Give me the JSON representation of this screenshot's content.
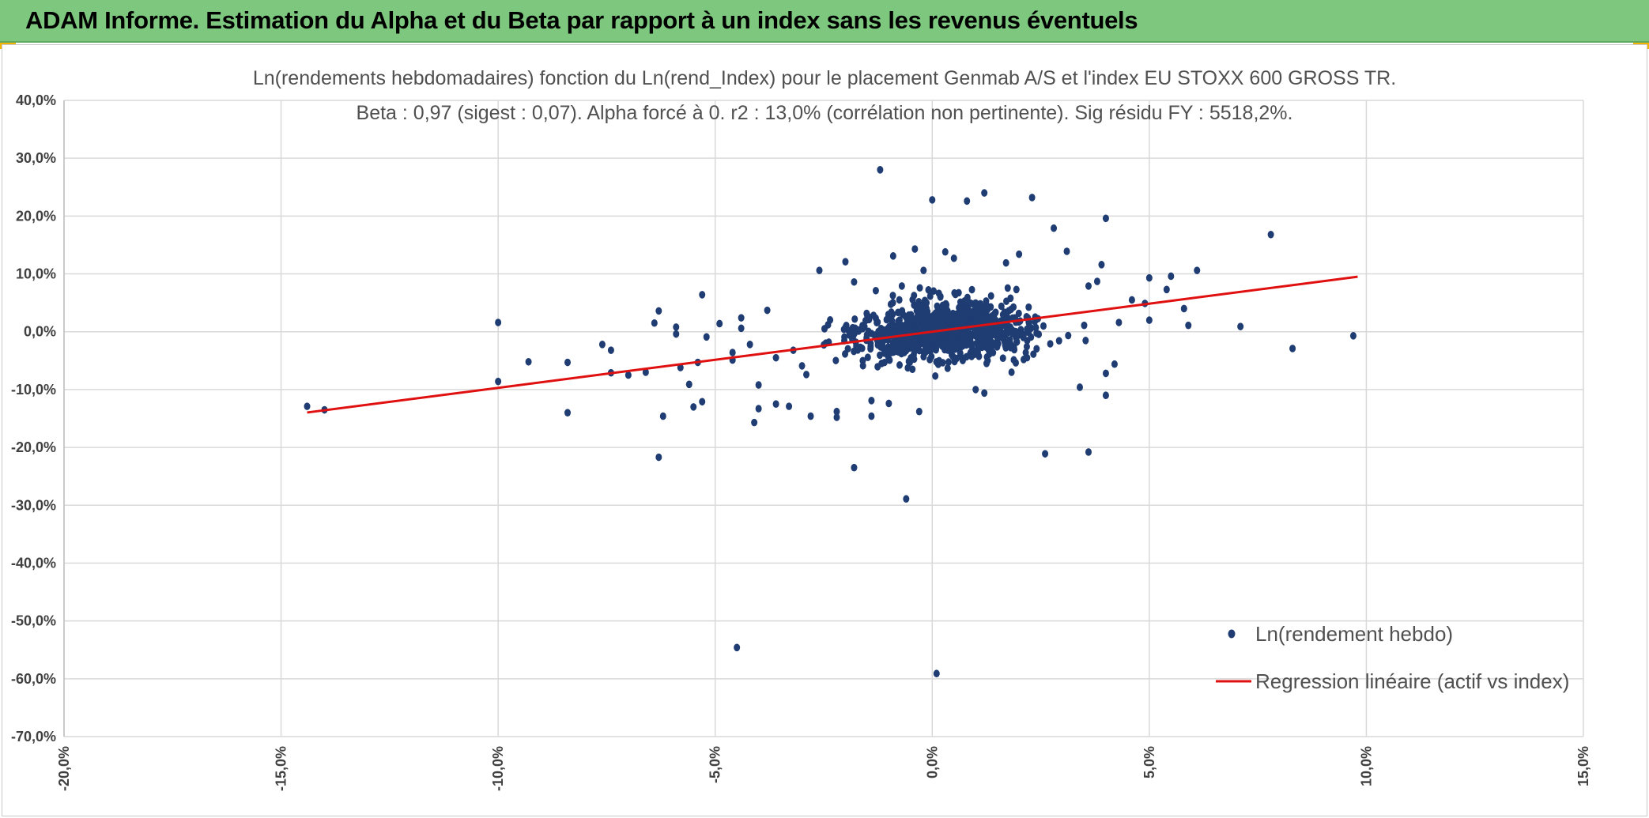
{
  "header": {
    "title": "ADAM Informe. Estimation du Alpha et du Beta par rapport à un index sans les revenus éventuels"
  },
  "colors": {
    "banner": "#7dc87e",
    "points": "#1f3d73",
    "regression": "#e01010",
    "grid": "#d9d9d9",
    "corner_accent": "#f2b400"
  },
  "chart_data": {
    "type": "scatter",
    "title": "Ln(rendements hebdomadaires) fonction du Ln(rend_Index) pour le placement Genmab A/S et l'index EU STOXX 600 GROSS TR.",
    "subtitle": "Beta : 0,97 (sigest : 0,07). Alpha forcé à 0. r2 : 13,0% (corrélation non pertinente). Sig résidu FY : 5518,2%.",
    "xlabel": "",
    "ylabel": "",
    "xlim": [
      -20,
      15
    ],
    "ylim": [
      -70,
      40
    ],
    "x_ticks": [
      -20,
      -15,
      -10,
      -5,
      0,
      5,
      10,
      15
    ],
    "y_ticks": [
      40,
      30,
      20,
      10,
      0,
      -10,
      -20,
      -30,
      -40,
      -50,
      -60,
      -70
    ],
    "x_tick_labels": [
      "-20,0%",
      "-15,0%",
      "-10,0%",
      "-5,0%",
      "0,0%",
      "5,0%",
      "10,0%",
      "15,0%"
    ],
    "y_tick_labels": [
      "40,0%",
      "30,0%",
      "20,0%",
      "10,0%",
      "0,0%",
      "-10,0%",
      "-20,0%",
      "-30,0%",
      "-40,0%",
      "-50,0%",
      "-60,0%",
      "-70,0%"
    ],
    "grid": true,
    "legend_position": "bottom-right",
    "legend": [
      "Ln(rendement hebdo)",
      "Regression linéaire (actif vs index)"
    ],
    "regression": {
      "name": "Regression linéaire (actif vs index)",
      "beta": 0.97,
      "alpha": 0,
      "x_range": [
        -14.4,
        9.8
      ]
    },
    "series": [
      {
        "name": "Ln(rendement hebdo)",
        "points": [
          [
            -14.4,
            -12.9
          ],
          [
            -14.0,
            -13.5
          ],
          [
            -10.0,
            1.6
          ],
          [
            -10.0,
            -8.6
          ],
          [
            -9.3,
            -5.2
          ],
          [
            -8.4,
            -5.3
          ],
          [
            -8.4,
            -14.0
          ],
          [
            -7.6,
            -2.2
          ],
          [
            -7.4,
            -3.2
          ],
          [
            -7.4,
            -7.1
          ],
          [
            -7.0,
            -7.5
          ],
          [
            -6.6,
            -7.0
          ],
          [
            -6.4,
            1.5
          ],
          [
            -6.3,
            3.6
          ],
          [
            -6.3,
            -21.7
          ],
          [
            -6.2,
            -14.6
          ],
          [
            -5.9,
            0.8
          ],
          [
            -5.9,
            -0.4
          ],
          [
            -5.8,
            -6.2
          ],
          [
            -5.6,
            -9.1
          ],
          [
            -5.5,
            -13.0
          ],
          [
            -5.4,
            -5.3
          ],
          [
            -5.3,
            6.4
          ],
          [
            -5.3,
            -12.1
          ],
          [
            -5.2,
            -0.9
          ],
          [
            -4.9,
            1.4
          ],
          [
            -4.6,
            -3.6
          ],
          [
            -4.6,
            -4.9
          ],
          [
            -4.4,
            2.4
          ],
          [
            -4.4,
            0.6
          ],
          [
            -4.2,
            -2.2
          ],
          [
            -4.0,
            -9.2
          ],
          [
            -3.8,
            3.7
          ],
          [
            -4.5,
            -54.6
          ],
          [
            -4.1,
            -15.7
          ],
          [
            -4.0,
            -13.3
          ],
          [
            -3.6,
            -12.5
          ],
          [
            -3.3,
            -12.9
          ],
          [
            -3.6,
            -4.5
          ],
          [
            -3.2,
            -3.2
          ],
          [
            -3.0,
            -5.9
          ],
          [
            -2.9,
            -7.4
          ],
          [
            -2.8,
            -14.6
          ],
          [
            -2.6,
            10.6
          ],
          [
            -2.4,
            1.2
          ],
          [
            -2.2,
            -13.8
          ],
          [
            -2.2,
            -14.8
          ],
          [
            -2.0,
            12.1
          ],
          [
            -1.8,
            -23.5
          ],
          [
            -1.8,
            8.6
          ],
          [
            -1.6,
            -5.0
          ],
          [
            -1.5,
            2.9
          ],
          [
            -1.4,
            -11.9
          ],
          [
            -1.4,
            -14.6
          ],
          [
            -1.2,
            28.0
          ],
          [
            -1.3,
            7.1
          ],
          [
            -1.0,
            -12.4
          ],
          [
            -0.9,
            13.1
          ],
          [
            -0.7,
            7.9
          ],
          [
            -0.6,
            -28.9
          ],
          [
            -0.4,
            14.3
          ],
          [
            -0.3,
            -13.8
          ],
          [
            -0.2,
            10.6
          ],
          [
            0.0,
            22.8
          ],
          [
            0.1,
            -59.1
          ],
          [
            0.3,
            13.8
          ],
          [
            0.5,
            12.7
          ],
          [
            0.8,
            22.6
          ],
          [
            1.0,
            -10.0
          ],
          [
            1.2,
            24.0
          ],
          [
            1.2,
            -10.6
          ],
          [
            1.7,
            11.9
          ],
          [
            2.0,
            13.4
          ],
          [
            2.3,
            23.2
          ],
          [
            2.6,
            -21.1
          ],
          [
            2.8,
            17.9
          ],
          [
            3.1,
            13.9
          ],
          [
            3.4,
            -9.6
          ],
          [
            3.5,
            1.1
          ],
          [
            3.6,
            7.9
          ],
          [
            3.6,
            -20.8
          ],
          [
            3.8,
            8.7
          ],
          [
            3.9,
            11.6
          ],
          [
            4.0,
            19.6
          ],
          [
            4.0,
            -11.0
          ],
          [
            4.0,
            -7.2
          ],
          [
            4.2,
            -5.6
          ],
          [
            4.3,
            1.6
          ],
          [
            4.6,
            5.5
          ],
          [
            4.9,
            4.9
          ],
          [
            5.0,
            9.3
          ],
          [
            5.0,
            2.0
          ],
          [
            5.4,
            7.3
          ],
          [
            5.5,
            9.6
          ],
          [
            5.8,
            4.0
          ],
          [
            5.9,
            1.1
          ],
          [
            6.1,
            10.6
          ],
          [
            7.1,
            0.9
          ],
          [
            7.8,
            16.8
          ],
          [
            8.3,
            -2.9
          ],
          [
            9.7,
            -0.7
          ]
        ]
      }
    ]
  }
}
